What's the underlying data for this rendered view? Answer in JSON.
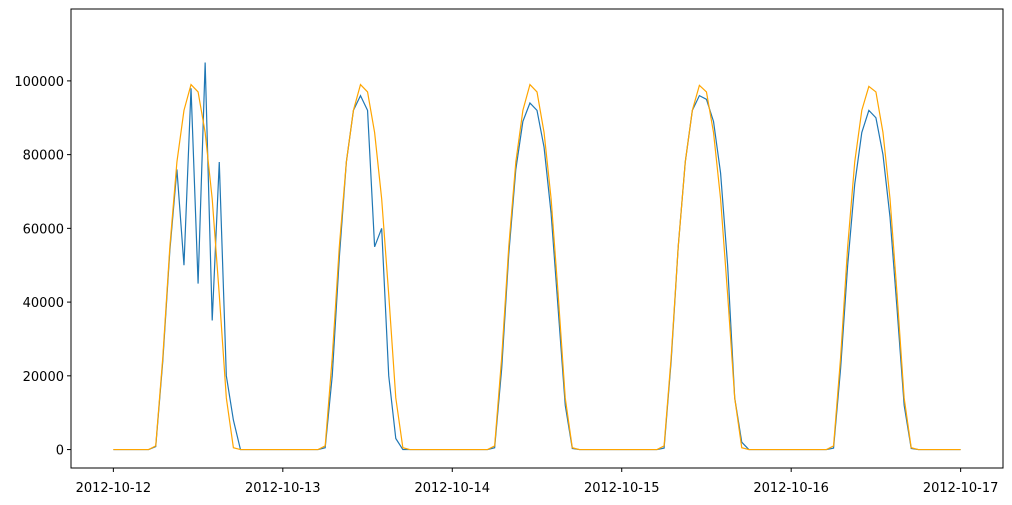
{
  "chart_data": {
    "type": "line",
    "x": [
      "2012-10-12T00:00",
      "2012-10-12T01:00",
      "2012-10-12T02:00",
      "2012-10-12T03:00",
      "2012-10-12T04:00",
      "2012-10-12T05:00",
      "2012-10-12T06:00",
      "2012-10-12T07:00",
      "2012-10-12T08:00",
      "2012-10-12T09:00",
      "2012-10-12T10:00",
      "2012-10-12T11:00",
      "2012-10-12T12:00",
      "2012-10-12T13:00",
      "2012-10-12T14:00",
      "2012-10-12T15:00",
      "2012-10-12T16:00",
      "2012-10-12T17:00",
      "2012-10-12T18:00",
      "2012-10-12T19:00",
      "2012-10-12T20:00",
      "2012-10-12T21:00",
      "2012-10-12T22:00",
      "2012-10-12T23:00",
      "2012-10-13T00:00",
      "2012-10-13T01:00",
      "2012-10-13T02:00",
      "2012-10-13T03:00",
      "2012-10-13T04:00",
      "2012-10-13T05:00",
      "2012-10-13T06:00",
      "2012-10-13T07:00",
      "2012-10-13T08:00",
      "2012-10-13T09:00",
      "2012-10-13T10:00",
      "2012-10-13T11:00",
      "2012-10-13T12:00",
      "2012-10-13T13:00",
      "2012-10-13T14:00",
      "2012-10-13T15:00",
      "2012-10-13T16:00",
      "2012-10-13T17:00",
      "2012-10-13T18:00",
      "2012-10-13T19:00",
      "2012-10-13T20:00",
      "2012-10-13T21:00",
      "2012-10-13T22:00",
      "2012-10-13T23:00",
      "2012-10-14T00:00",
      "2012-10-14T01:00",
      "2012-10-14T02:00",
      "2012-10-14T03:00",
      "2012-10-14T04:00",
      "2012-10-14T05:00",
      "2012-10-14T06:00",
      "2012-10-14T07:00",
      "2012-10-14T08:00",
      "2012-10-14T09:00",
      "2012-10-14T10:00",
      "2012-10-14T11:00",
      "2012-10-14T12:00",
      "2012-10-14T13:00",
      "2012-10-14T14:00",
      "2012-10-14T15:00",
      "2012-10-14T16:00",
      "2012-10-14T17:00",
      "2012-10-14T18:00",
      "2012-10-14T19:00",
      "2012-10-14T20:00",
      "2012-10-14T21:00",
      "2012-10-14T22:00",
      "2012-10-14T23:00",
      "2012-10-15T00:00",
      "2012-10-15T01:00",
      "2012-10-15T02:00",
      "2012-10-15T03:00",
      "2012-10-15T04:00",
      "2012-10-15T05:00",
      "2012-10-15T06:00",
      "2012-10-15T07:00",
      "2012-10-15T08:00",
      "2012-10-15T09:00",
      "2012-10-15T10:00",
      "2012-10-15T11:00",
      "2012-10-15T12:00",
      "2012-10-15T13:00",
      "2012-10-15T14:00",
      "2012-10-15T15:00",
      "2012-10-15T16:00",
      "2012-10-15T17:00",
      "2012-10-15T18:00",
      "2012-10-15T19:00",
      "2012-10-15T20:00",
      "2012-10-15T21:00",
      "2012-10-15T22:00",
      "2012-10-15T23:00",
      "2012-10-16T00:00",
      "2012-10-16T01:00",
      "2012-10-16T02:00",
      "2012-10-16T03:00",
      "2012-10-16T04:00",
      "2012-10-16T05:00",
      "2012-10-16T06:00",
      "2012-10-16T07:00",
      "2012-10-16T08:00",
      "2012-10-16T09:00",
      "2012-10-16T10:00",
      "2012-10-16T11:00",
      "2012-10-16T12:00",
      "2012-10-16T13:00",
      "2012-10-16T14:00",
      "2012-10-16T15:00",
      "2012-10-16T16:00",
      "2012-10-16T17:00",
      "2012-10-16T18:00",
      "2012-10-16T19:00",
      "2012-10-16T20:00",
      "2012-10-16T21:00",
      "2012-10-16T22:00",
      "2012-10-16T23:00",
      "2012-10-17T00:00"
    ],
    "series": [
      {
        "color": "#1f77b4",
        "values": [
          0,
          0,
          0,
          0,
          0,
          0,
          800,
          24000,
          54000,
          76000,
          50000,
          98000,
          45000,
          105000,
          35000,
          78000,
          20000,
          8000,
          0,
          0,
          0,
          0,
          0,
          0,
          0,
          0,
          0,
          0,
          0,
          0,
          500,
          20000,
          52000,
          78000,
          92000,
          96000,
          92000,
          55000,
          60000,
          20000,
          3000,
          0,
          0,
          0,
          0,
          0,
          0,
          0,
          0,
          0,
          0,
          0,
          0,
          0,
          500,
          22000,
          53000,
          76000,
          89000,
          94000,
          92000,
          82000,
          64000,
          38000,
          12000,
          300,
          0,
          0,
          0,
          0,
          0,
          0,
          0,
          0,
          0,
          0,
          0,
          0,
          400,
          24000,
          55000,
          78000,
          92000,
          96000,
          95000,
          89000,
          75000,
          50000,
          14000,
          2000,
          0,
          0,
          0,
          0,
          0,
          0,
          0,
          0,
          0,
          0,
          0,
          0,
          400,
          22000,
          50000,
          72000,
          86000,
          92000,
          90000,
          80000,
          63000,
          38000,
          12000,
          300,
          0,
          0,
          0,
          0,
          0,
          0,
          0
        ]
      },
      {
        "color": "#ffa500",
        "values": [
          0,
          0,
          0,
          0,
          0,
          0,
          1000,
          25000,
          55000,
          78000,
          92000,
          99000,
          97000,
          86000,
          68000,
          42000,
          14000,
          500,
          0,
          0,
          0,
          0,
          0,
          0,
          0,
          0,
          0,
          0,
          0,
          0,
          1000,
          25000,
          55000,
          78000,
          92000,
          99000,
          97000,
          86000,
          68000,
          42000,
          14000,
          500,
          0,
          0,
          0,
          0,
          0,
          0,
          0,
          0,
          0,
          0,
          0,
          0,
          1000,
          25000,
          55000,
          78000,
          92000,
          99000,
          97000,
          86000,
          68000,
          42000,
          14000,
          500,
          0,
          0,
          0,
          0,
          0,
          0,
          0,
          0,
          0,
          0,
          0,
          0,
          1000,
          25000,
          55000,
          78000,
          92000,
          98800,
          97000,
          86000,
          68000,
          42000,
          14000,
          500,
          0,
          0,
          0,
          0,
          0,
          0,
          0,
          0,
          0,
          0,
          0,
          0,
          1000,
          25000,
          55000,
          78000,
          92000,
          98500,
          97000,
          86000,
          68000,
          42000,
          14000,
          500,
          0,
          0,
          0,
          0,
          0,
          0,
          0
        ]
      }
    ],
    "xlim": [
      "2012-10-11T18:00",
      "2012-10-17T06:00"
    ],
    "xticks": [
      "2012-10-12",
      "2012-10-13",
      "2012-10-14",
      "2012-10-15",
      "2012-10-16",
      "2012-10-17"
    ],
    "ylim": [
      -5000,
      119500
    ],
    "yticks": [
      0,
      20000,
      40000,
      60000,
      80000,
      100000
    ]
  }
}
